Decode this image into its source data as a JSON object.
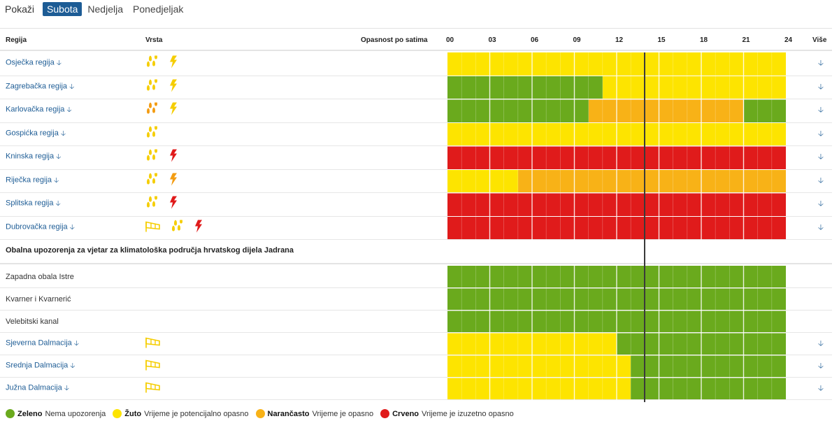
{
  "tabs": {
    "show_label": "Pokaži",
    "items": [
      {
        "label": "Subota",
        "active": true
      },
      {
        "label": "Nedjelja",
        "active": false
      },
      {
        "label": "Ponedjeljak",
        "active": false
      }
    ]
  },
  "header": {
    "region": "Regija",
    "type": "Vrsta",
    "hourly": "Opasnost po satima",
    "hours": [
      "00",
      "03",
      "06",
      "09",
      "12",
      "15",
      "18",
      "21",
      "24"
    ],
    "more": "Više"
  },
  "colors": {
    "green": "#6aaa1d",
    "yellow": "#fde400",
    "orange": "#f8b217",
    "red": "#e01b1b",
    "icon_yellow": "#f5cd00",
    "icon_orange": "#f39c12",
    "icon_red": "#e01b1b"
  },
  "current_hour": 14,
  "regions": [
    {
      "name": "Osječka regija",
      "arrow": "🡣",
      "icons": [
        {
          "type": "rain-icon",
          "color": "yellow"
        },
        {
          "type": "lightning-icon",
          "color": "yellow"
        }
      ],
      "segments": [
        {
          "from": 0,
          "to": 24,
          "level": "yellow"
        }
      ]
    },
    {
      "name": "Zagrebačka regija",
      "arrow": "🡣",
      "icons": [
        {
          "type": "rain-icon",
          "color": "yellow"
        },
        {
          "type": "lightning-icon",
          "color": "yellow"
        }
      ],
      "segments": [
        {
          "from": 0,
          "to": 11,
          "level": "green"
        },
        {
          "from": 11,
          "to": 24,
          "level": "yellow"
        }
      ]
    },
    {
      "name": "Karlovačka regija",
      "arrow": "🡣",
      "icons": [
        {
          "type": "rain-icon",
          "color": "orange"
        },
        {
          "type": "lightning-icon",
          "color": "yellow"
        }
      ],
      "segments": [
        {
          "from": 0,
          "to": 10,
          "level": "green"
        },
        {
          "from": 10,
          "to": 21,
          "level": "orange"
        },
        {
          "from": 21,
          "to": 24,
          "level": "green"
        }
      ]
    },
    {
      "name": "Gospićka regija",
      "arrow": "🡣",
      "icons": [
        {
          "type": "rain-icon",
          "color": "yellow"
        }
      ],
      "segments": [
        {
          "from": 0,
          "to": 24,
          "level": "yellow"
        }
      ]
    },
    {
      "name": "Kninska regija",
      "arrow": "🡣",
      "icons": [
        {
          "type": "rain-icon",
          "color": "yellow"
        },
        {
          "type": "lightning-icon",
          "color": "red"
        }
      ],
      "segments": [
        {
          "from": 0,
          "to": 24,
          "level": "red"
        }
      ]
    },
    {
      "name": "Riječka regija",
      "arrow": "🡣",
      "icons": [
        {
          "type": "rain-icon",
          "color": "yellow"
        },
        {
          "type": "lightning-icon",
          "color": "orange"
        }
      ],
      "segments": [
        {
          "from": 0,
          "to": 5,
          "level": "yellow"
        },
        {
          "from": 5,
          "to": 24,
          "level": "orange"
        }
      ]
    },
    {
      "name": "Splitska regija",
      "arrow": "🡣",
      "icons": [
        {
          "type": "rain-icon",
          "color": "yellow"
        },
        {
          "type": "lightning-icon",
          "color": "red"
        }
      ],
      "segments": [
        {
          "from": 0,
          "to": 24,
          "level": "red"
        }
      ]
    },
    {
      "name": "Dubrovačka regija",
      "arrow": "🡣",
      "icons": [
        {
          "type": "wind-icon",
          "color": "yellow"
        },
        {
          "type": "rain-icon",
          "color": "yellow"
        },
        {
          "type": "lightning-icon",
          "color": "red"
        }
      ],
      "segments": [
        {
          "from": 0,
          "to": 24,
          "level": "red"
        }
      ]
    }
  ],
  "section_title": "Obalna upozorenja za vjetar za klimatološka područja hrvatskog dijela Jadrana",
  "coastal": [
    {
      "name": "Zapadna obala Istre",
      "arrow": "",
      "icons": [],
      "segments": [
        {
          "from": 0,
          "to": 24,
          "level": "green"
        }
      ]
    },
    {
      "name": "Kvarner i Kvarnerić",
      "arrow": "",
      "icons": [],
      "segments": [
        {
          "from": 0,
          "to": 24,
          "level": "green"
        }
      ]
    },
    {
      "name": "Velebitski kanal",
      "arrow": "",
      "icons": [],
      "segments": [
        {
          "from": 0,
          "to": 24,
          "level": "green"
        }
      ]
    },
    {
      "name": "Sjeverna Dalmacija",
      "arrow": "🡣",
      "icons": [
        {
          "type": "wind-icon",
          "color": "yellow"
        }
      ],
      "segments": [
        {
          "from": 0,
          "to": 12,
          "level": "yellow"
        },
        {
          "from": 12,
          "to": 24,
          "level": "green"
        }
      ]
    },
    {
      "name": "Srednja Dalmacija",
      "arrow": "🡣",
      "icons": [
        {
          "type": "wind-icon",
          "color": "yellow"
        }
      ],
      "segments": [
        {
          "from": 0,
          "to": 13,
          "level": "yellow"
        },
        {
          "from": 13,
          "to": 24,
          "level": "green"
        }
      ]
    },
    {
      "name": "Južna Dalmacija",
      "arrow": "🡣",
      "icons": [
        {
          "type": "wind-icon",
          "color": "yellow"
        }
      ],
      "segments": [
        {
          "from": 0,
          "to": 13,
          "level": "yellow"
        },
        {
          "from": 13,
          "to": 24,
          "level": "green"
        }
      ]
    }
  ],
  "more_arrow": "🡣",
  "legend": [
    {
      "key": "green",
      "label": "Zeleno",
      "desc": "Nema upozorenja"
    },
    {
      "key": "yellow",
      "label": "Žuto",
      "desc": "Vrijeme je potencijalno opasno"
    },
    {
      "key": "orange",
      "label": "Narančasto",
      "desc": "Vrijeme je opasno"
    },
    {
      "key": "red",
      "label": "Crveno",
      "desc": "Vrijeme je izuzetno opasno"
    }
  ]
}
